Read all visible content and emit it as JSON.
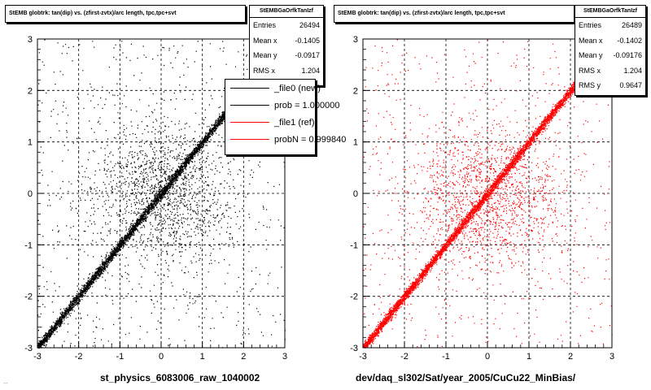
{
  "colors": {
    "black": "#000000",
    "red": "#ff0000"
  },
  "chart_data": [
    {
      "type": "scatter",
      "title": "StEMB globtrk: tan(dip) vs. (zfirst-zvtx)/arc length, tpc,tpc+svt",
      "xlabel": "st_physics_6083006_raw_1040002",
      "xlim": [
        -3,
        3
      ],
      "ylim": [
        -3,
        3
      ],
      "xticks": [
        "-3",
        "-2",
        "-1",
        "0",
        "1",
        "2",
        "3"
      ],
      "yticks": [
        "-3",
        "-2",
        "-1",
        "0",
        "1",
        "2",
        "3"
      ],
      "grid": true,
      "marker_color": "#000000",
      "stats": {
        "name": "StEMBGaOrfkTanIzf",
        "rows": [
          {
            "label": "Entries",
            "value": "26494"
          },
          {
            "label": "Mean x",
            "value": "-0.1405"
          },
          {
            "label": "Mean y",
            "value": "-0.0917"
          },
          {
            "label": "RMS x",
            "value": "1.204"
          }
        ]
      },
      "legend": {
        "position": "top-right",
        "entries": [
          {
            "label": "_file0 (new)",
            "color": "#000000"
          },
          {
            "label": "prob = 1.000000",
            "color": "#000000"
          },
          {
            "label": "_file1 (ref)",
            "color": "#ff0000"
          },
          {
            "label": "probN = 0.999840",
            "color": "#ff0000"
          }
        ]
      },
      "series": [
        {
          "component": "diagonal y≈x band",
          "x_range": [
            -3,
            2.4
          ],
          "approx_points": 18000
        },
        {
          "component": "central blob",
          "center": [
            0,
            0
          ],
          "sigma": 1.0,
          "approx_points": 6000
        },
        {
          "component": "uniform background",
          "x_range": [
            -3,
            3
          ],
          "y_range": [
            -3,
            3
          ],
          "approx_points": 2500
        }
      ]
    },
    {
      "type": "scatter",
      "title": "StEMB globtrk: tan(dip) vs. (zfirst-zvtx)/arc length, tpc,tpc+svt",
      "xlabel": "dev/daq_sl302/Sat/year_2005/CuCu22_MinBias/",
      "xlim": [
        -3,
        3
      ],
      "ylim": [
        -3,
        3
      ],
      "xticks": [
        "-3",
        "-2",
        "-1",
        "0",
        "1",
        "2",
        "3"
      ],
      "yticks": [
        "-3",
        "-2",
        "-1",
        "0",
        "1",
        "2",
        "3"
      ],
      "grid": true,
      "marker_color": "#ff0000",
      "stats": {
        "name": "StEMBGaOrfkTanIzf",
        "rows": [
          {
            "label": "Entries",
            "value": "26489"
          },
          {
            "label": "Mean x",
            "value": "-0.1402"
          },
          {
            "label": "Mean y",
            "value": "-0.09176"
          },
          {
            "label": "RMS x",
            "value": "1.204"
          },
          {
            "label": "RMS y",
            "value": "0.9647"
          }
        ]
      },
      "series": [
        {
          "component": "diagonal y≈x band",
          "x_range": [
            -3,
            2.4
          ],
          "approx_points": 18000
        },
        {
          "component": "central blob",
          "center": [
            0,
            0
          ],
          "sigma": 1.0,
          "approx_points": 6000
        },
        {
          "component": "uniform background",
          "x_range": [
            -3,
            3
          ],
          "y_range": [
            -3,
            3
          ],
          "approx_points": 2500
        }
      ]
    }
  ],
  "footer_text": "..."
}
